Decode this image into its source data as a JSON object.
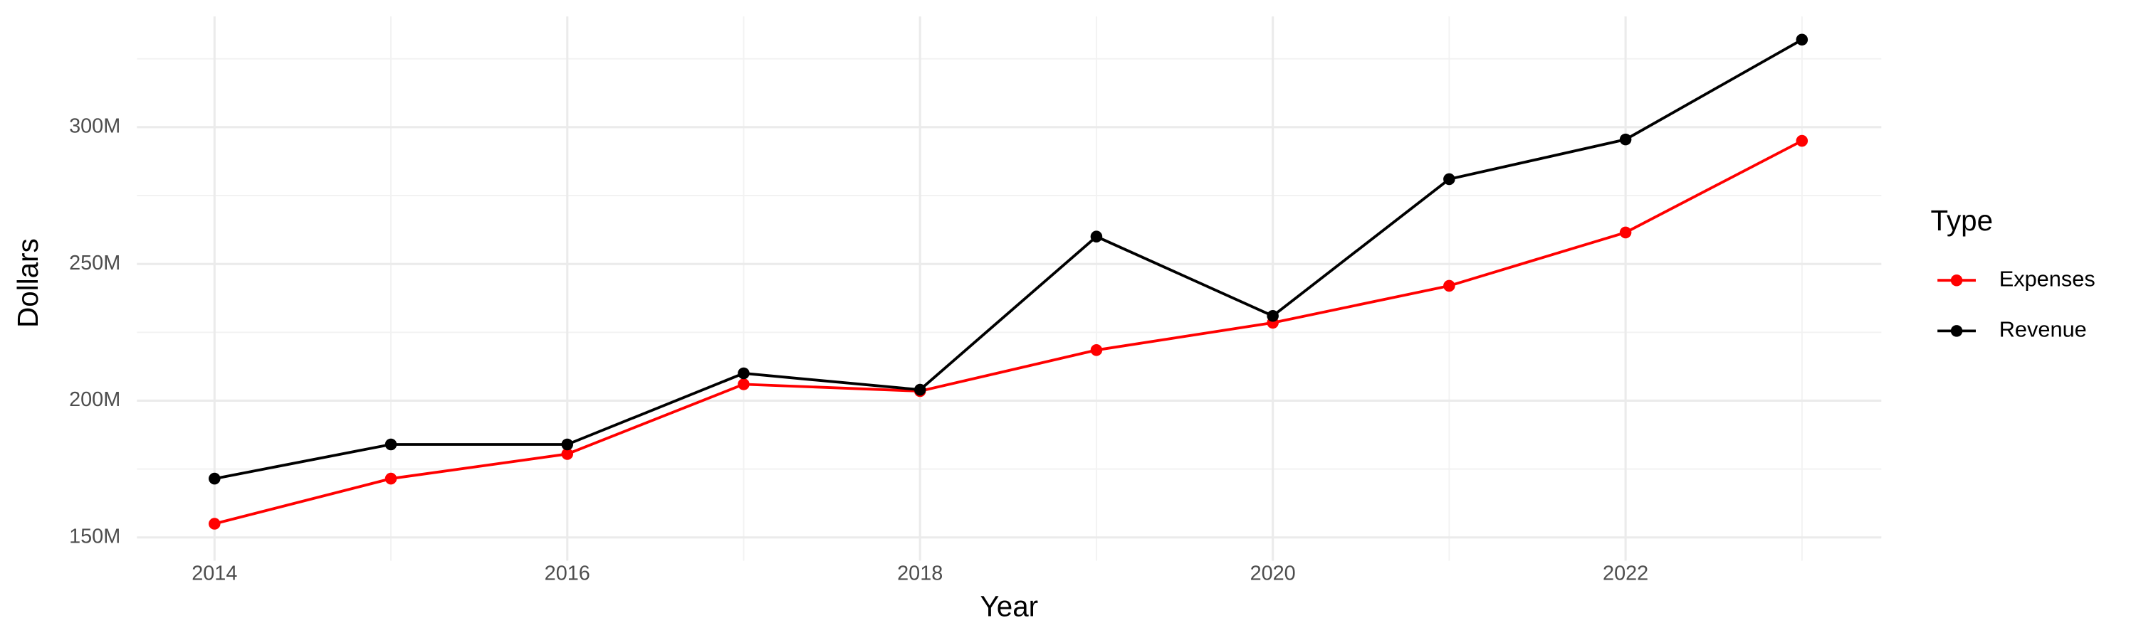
{
  "chart_data": {
    "type": "line",
    "x_label": "Year",
    "y_label": "Dollars",
    "legend_title": "Type",
    "x": [
      2014,
      2015,
      2016,
      2017,
      2018,
      2019,
      2020,
      2021,
      2022,
      2023
    ],
    "series": [
      {
        "name": "Expenses",
        "color": "#ff0000",
        "values": [
          155000000,
          171500000,
          180500000,
          206000000,
          203500000,
          218500000,
          228500000,
          242000000,
          261500000,
          295000000
        ]
      },
      {
        "name": "Revenue",
        "color": "#000000",
        "values": [
          171500000,
          184000000,
          184000000,
          210000000,
          204000000,
          260000000,
          231000000,
          281000000,
          295500000,
          332000000
        ]
      }
    ],
    "xlim": [
      2013.56,
      2023.45
    ],
    "xticks": [
      2014,
      2016,
      2018,
      2020,
      2022
    ],
    "ylim": [
      141500000,
      340500000
    ],
    "yticks": [
      {
        "value": 150000000,
        "label": "150M"
      },
      {
        "value": 200000000,
        "label": "200M"
      },
      {
        "value": 250000000,
        "label": "250M"
      },
      {
        "value": 300000000,
        "label": "300M"
      }
    ],
    "grid": true,
    "legend": "right"
  }
}
